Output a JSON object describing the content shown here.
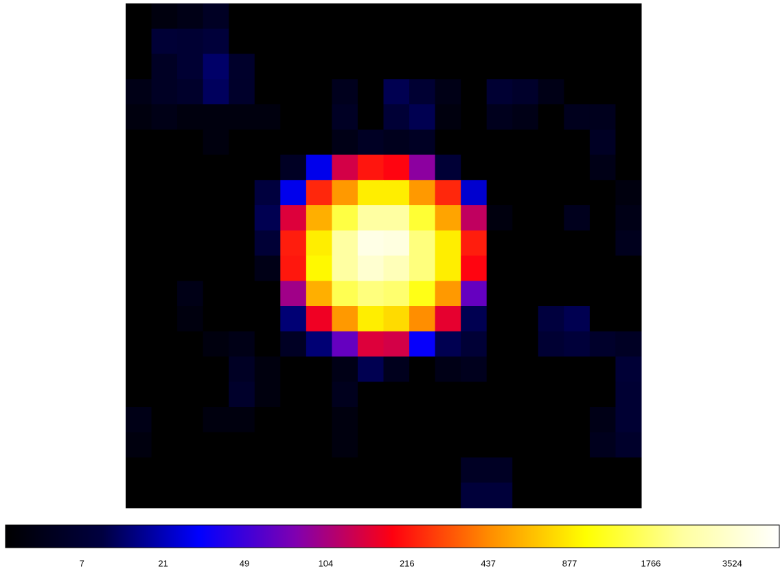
{
  "chart_data": {
    "type": "heatmap",
    "values": [
      [
        0,
        2,
        3,
        5,
        0,
        0,
        0,
        0,
        0,
        0,
        0,
        0,
        0,
        0,
        0,
        0,
        0,
        0,
        0,
        0
      ],
      [
        0,
        8,
        7,
        9,
        0,
        0,
        0,
        0,
        0,
        0,
        0,
        0,
        0,
        0,
        0,
        0,
        0,
        0,
        0,
        0
      ],
      [
        0,
        5,
        7,
        14,
        6,
        0,
        0,
        0,
        0,
        0,
        0,
        0,
        0,
        0,
        0,
        0,
        0,
        0,
        0,
        0
      ],
      [
        3,
        5,
        6,
        13,
        6,
        0,
        0,
        0,
        4,
        0,
        12,
        7,
        3,
        0,
        7,
        6,
        3,
        0,
        0,
        0
      ],
      [
        2,
        3,
        2,
        2,
        2,
        2,
        0,
        0,
        5,
        0,
        8,
        12,
        2,
        0,
        4,
        3,
        0,
        4,
        4,
        0
      ],
      [
        0,
        0,
        0,
        2,
        0,
        0,
        0,
        0,
        3,
        5,
        4,
        5,
        0,
        0,
        0,
        0,
        0,
        0,
        5,
        0
      ],
      [
        0,
        0,
        0,
        0,
        0,
        0,
        5,
        30,
        150,
        216,
        200,
        90,
        8,
        0,
        0,
        0,
        0,
        0,
        3,
        0
      ],
      [
        0,
        0,
        0,
        0,
        0,
        10,
        30,
        250,
        500,
        900,
        900,
        500,
        250,
        25,
        0,
        0,
        0,
        0,
        0,
        2
      ],
      [
        0,
        0,
        0,
        0,
        0,
        12,
        160,
        600,
        1500,
        2500,
        2500,
        1400,
        550,
        130,
        2,
        0,
        0,
        4,
        0,
        3
      ],
      [
        0,
        0,
        0,
        0,
        0,
        8,
        230,
        900,
        2500,
        4500,
        4200,
        2000,
        900,
        230,
        0,
        0,
        0,
        0,
        0,
        4
      ],
      [
        0,
        0,
        0,
        0,
        0,
        3,
        220,
        1000,
        2500,
        3500,
        3000,
        2000,
        900,
        200,
        0,
        0,
        0,
        0,
        0,
        0
      ],
      [
        0,
        0,
        3,
        0,
        0,
        0,
        100,
        600,
        1600,
        2000,
        1800,
        1200,
        500,
        70,
        0,
        0,
        0,
        0,
        0,
        0
      ],
      [
        0,
        0,
        2,
        0,
        0,
        0,
        15,
        180,
        500,
        900,
        800,
        450,
        170,
        12,
        0,
        0,
        10,
        12,
        0,
        0
      ],
      [
        0,
        0,
        0,
        2,
        3,
        0,
        5,
        15,
        70,
        160,
        150,
        35,
        12,
        8,
        0,
        0,
        7,
        9,
        6,
        5
      ],
      [
        0,
        0,
        0,
        0,
        5,
        2,
        0,
        0,
        3,
        12,
        4,
        0,
        3,
        4,
        0,
        0,
        0,
        0,
        0,
        8
      ],
      [
        0,
        0,
        0,
        0,
        6,
        2,
        0,
        0,
        4,
        0,
        0,
        0,
        0,
        0,
        0,
        0,
        0,
        0,
        0,
        7
      ],
      [
        3,
        0,
        0,
        2,
        2,
        0,
        0,
        0,
        2,
        0,
        0,
        0,
        0,
        0,
        0,
        0,
        0,
        0,
        3,
        7
      ],
      [
        2,
        0,
        0,
        0,
        0,
        0,
        0,
        0,
        2,
        0,
        0,
        0,
        0,
        0,
        0,
        0,
        0,
        0,
        4,
        6
      ],
      [
        0,
        0,
        0,
        0,
        0,
        0,
        0,
        0,
        0,
        0,
        0,
        0,
        0,
        5,
        5,
        0,
        0,
        0,
        0,
        0
      ],
      [
        0,
        0,
        0,
        0,
        0,
        0,
        0,
        0,
        0,
        0,
        0,
        0,
        0,
        9,
        9,
        0,
        0,
        0,
        0,
        0
      ]
    ],
    "colorbar": {
      "clim": [
        0,
        5600
      ],
      "ticks": [
        7,
        21,
        49,
        104,
        216,
        437,
        877,
        1766,
        3524
      ],
      "colors": [
        "#000000",
        "#000040",
        "#0000ff",
        "#8000b0",
        "#ff0010",
        "#ff8c00",
        "#ffff00",
        "#ffffa0",
        "#ffffff"
      ]
    }
  }
}
